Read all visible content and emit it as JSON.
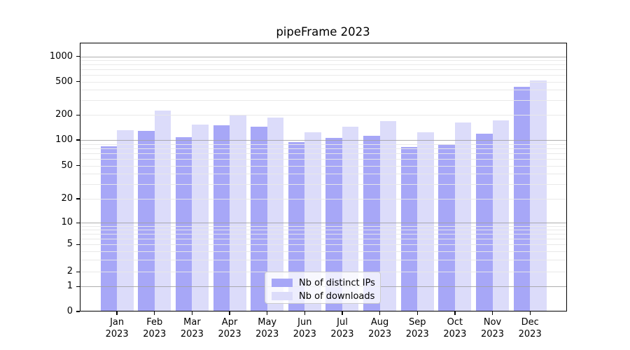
{
  "title": "pipeFrame 2023",
  "colors": {
    "distinct_ips": "#a7a7f7",
    "downloads": "#dcdcfa",
    "grid_major": "#a0a0a0",
    "grid_minor": "#e8e8e8",
    "axis": "#000000"
  },
  "legend": {
    "items": [
      {
        "label": "Nb of distinct IPs",
        "color": "#a7a7f7"
      },
      {
        "label": "Nb of downloads",
        "color": "#dcdcfa"
      }
    ]
  },
  "y_axis": {
    "tick_labels": [
      "0",
      "1",
      "2",
      "5",
      "10",
      "20",
      "50",
      "100",
      "200",
      "500",
      "1000"
    ]
  },
  "x_axis": {
    "months": [
      "Jan",
      "Feb",
      "Mar",
      "Apr",
      "May",
      "Jun",
      "Jul",
      "Aug",
      "Sep",
      "Oct",
      "Nov",
      "Dec"
    ],
    "year": "2023"
  },
  "chart_data": {
    "type": "bar",
    "title": "pipeFrame 2023",
    "categories": [
      "Jan 2023",
      "Feb 2023",
      "Mar 2023",
      "Apr 2023",
      "May 2023",
      "Jun 2023",
      "Jul 2023",
      "Aug 2023",
      "Sep 2023",
      "Oct 2023",
      "Nov 2023",
      "Dec 2023"
    ],
    "series": [
      {
        "name": "Nb of distinct IPs",
        "color": "#a7a7f7",
        "values": [
          84,
          129,
          109,
          150,
          144,
          94,
          107,
          112,
          83,
          90,
          120,
          435
        ]
      },
      {
        "name": "Nb of downloads",
        "color": "#dcdcfa",
        "values": [
          131,
          224,
          154,
          203,
          186,
          124,
          145,
          168,
          123,
          161,
          172,
          512
        ]
      }
    ],
    "xlabel": "",
    "ylabel": "",
    "yscale": "symlog",
    "yticks": [
      0,
      1,
      2,
      5,
      10,
      20,
      50,
      100,
      200,
      500,
      1000
    ],
    "ylim": [
      0,
      1470
    ],
    "grid": "both, drawn over bars",
    "legend_position": "lower center"
  }
}
